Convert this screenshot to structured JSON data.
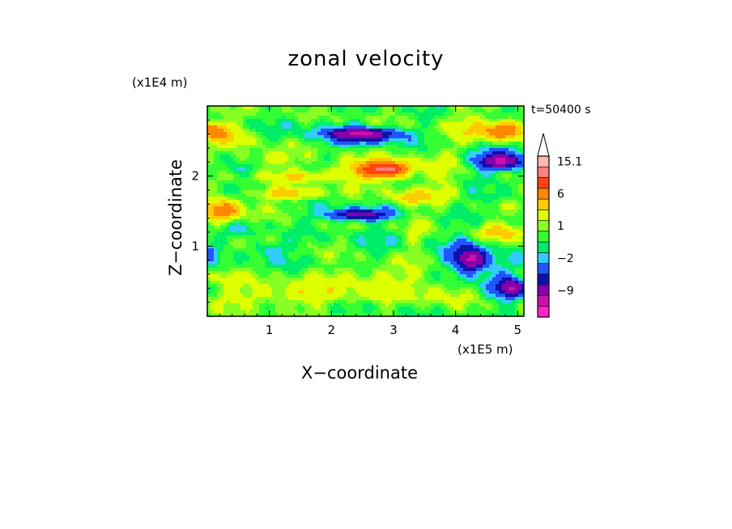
{
  "chart_data": {
    "type": "heatmap",
    "title": "zonal velocity",
    "xlabel": "X−coordinate",
    "ylabel": "Z−coordinate",
    "x_unit_label": "(x1E5 m)",
    "y_unit_label": "(x1E4 m)",
    "annotation": "t=50400 s",
    "xlim": [
      0,
      5.1
    ],
    "ylim": [
      0,
      3.0
    ],
    "x_ticks": [
      1,
      2,
      3,
      4,
      5
    ],
    "x_tick_labels": [
      "1",
      "2",
      "3",
      "4",
      "5"
    ],
    "y_ticks": [
      1,
      2
    ],
    "y_tick_labels": [
      "1",
      "2"
    ],
    "colorbar": {
      "levels": [
        -15,
        -12,
        -9,
        -6,
        -4,
        -2,
        -1,
        0,
        1,
        2,
        4,
        6,
        9,
        12,
        15.1
      ],
      "colors": [
        "#ff22cc",
        "#cc11aa",
        "#8800aa",
        "#1111aa",
        "#2255ff",
        "#33ccff",
        "#00ee66",
        "#33ff33",
        "#88ff22",
        "#ddff00",
        "#ffcc00",
        "#ff8800",
        "#ff4411",
        "#ff8080",
        "#ffb6b6"
      ],
      "labels": [
        "15.1",
        "6",
        "1",
        "−2",
        "−9"
      ],
      "extend": "max",
      "extend_color": "#ffffff"
    },
    "features": [
      {
        "cx": 1.0,
        "cy": 0.95,
        "rx": 0.35,
        "ry": 0.12,
        "v": -2.5
      },
      {
        "cx": 0.55,
        "cy": 1.25,
        "rx": 0.25,
        "ry": 0.12,
        "v": -1.5
      },
      {
        "cx": 0.25,
        "cy": 1.5,
        "rx": 0.3,
        "ry": 0.16,
        "v": 7.5
      },
      {
        "cx": 0.1,
        "cy": 2.65,
        "rx": 0.22,
        "ry": 0.12,
        "v": 7.5
      },
      {
        "cx": 0.45,
        "cy": 2.55,
        "rx": 0.3,
        "ry": 0.14,
        "v": 2.5
      },
      {
        "cx": 0.4,
        "cy": 2.1,
        "rx": 0.3,
        "ry": 0.1,
        "v": -1.5
      },
      {
        "cx": 1.0,
        "cy": 2.25,
        "rx": 0.4,
        "ry": 0.12,
        "v": 2.5
      },
      {
        "cx": 1.35,
        "cy": 1.75,
        "rx": 0.55,
        "ry": 0.08,
        "v": 5.0
      },
      {
        "cx": 1.45,
        "cy": 2.0,
        "rx": 0.55,
        "ry": 0.08,
        "v": 3.0
      },
      {
        "cx": 1.6,
        "cy": 2.7,
        "rx": 0.5,
        "ry": 0.16,
        "v": -1.0
      },
      {
        "cx": 2.2,
        "cy": 1.45,
        "rx": 0.5,
        "ry": 0.1,
        "v": -2.5
      },
      {
        "cx": 2.5,
        "cy": 1.45,
        "rx": 0.45,
        "ry": 0.08,
        "v": -6.5
      },
      {
        "cx": 2.4,
        "cy": 2.55,
        "rx": 0.55,
        "ry": 0.14,
        "v": -3.0
      },
      {
        "cx": 2.55,
        "cy": 2.6,
        "rx": 0.55,
        "ry": 0.09,
        "v": -7.5
      },
      {
        "cx": 2.7,
        "cy": 2.1,
        "rx": 0.65,
        "ry": 0.15,
        "v": 5.5
      },
      {
        "cx": 2.9,
        "cy": 2.1,
        "rx": 0.35,
        "ry": 0.1,
        "v": 8.0
      },
      {
        "cx": 3.3,
        "cy": 1.7,
        "rx": 0.35,
        "ry": 0.1,
        "v": 4.5
      },
      {
        "cx": 2.9,
        "cy": 1.05,
        "rx": 0.7,
        "ry": 0.3,
        "v": -0.5
      },
      {
        "cx": 1.5,
        "cy": 0.75,
        "rx": 0.8,
        "ry": 0.12,
        "v": -0.5
      },
      {
        "cx": 1.3,
        "cy": 0.3,
        "rx": 1.5,
        "ry": 0.15,
        "v": 2.5
      },
      {
        "cx": 2.6,
        "cy": 0.55,
        "rx": 1.2,
        "ry": 0.18,
        "v": 2.0
      },
      {
        "cx": 0.3,
        "cy": 0.55,
        "rx": 0.35,
        "ry": 0.1,
        "v": 1.5
      },
      {
        "cx": 0.05,
        "cy": 0.9,
        "rx": 0.12,
        "ry": 0.15,
        "v": -2.5
      },
      {
        "cx": 3.35,
        "cy": 1.2,
        "rx": 0.15,
        "ry": 0.4,
        "v": 1.5
      },
      {
        "cx": 4.15,
        "cy": 2.7,
        "rx": 0.3,
        "ry": 0.25,
        "v": 2.0
      },
      {
        "cx": 4.75,
        "cy": 2.65,
        "rx": 0.35,
        "ry": 0.14,
        "v": 8.0
      },
      {
        "cx": 4.7,
        "cy": 2.25,
        "rx": 0.45,
        "ry": 0.18,
        "v": -3.0
      },
      {
        "cx": 4.75,
        "cy": 2.2,
        "rx": 0.4,
        "ry": 0.1,
        "v": -7.0
      },
      {
        "cx": 4.6,
        "cy": 1.7,
        "rx": 0.4,
        "ry": 0.08,
        "v": -1.5
      },
      {
        "cx": 4.7,
        "cy": 1.2,
        "rx": 0.4,
        "ry": 0.12,
        "v": 4.0
      },
      {
        "cx": 4.2,
        "cy": 0.85,
        "rx": 0.4,
        "ry": 0.3,
        "v": -3.5
      },
      {
        "cx": 4.25,
        "cy": 0.8,
        "rx": 0.22,
        "ry": 0.15,
        "v": -7.5
      },
      {
        "cx": 4.9,
        "cy": 0.4,
        "rx": 0.2,
        "ry": 0.12,
        "v": -7.5
      },
      {
        "cx": 4.7,
        "cy": 0.5,
        "rx": 0.35,
        "ry": 0.3,
        "v": -2.5
      },
      {
        "cx": 3.7,
        "cy": 0.3,
        "rx": 0.5,
        "ry": 0.18,
        "v": 1.5
      },
      {
        "cx": 3.8,
        "cy": 2.0,
        "rx": 0.25,
        "ry": 0.35,
        "v": 1.5
      }
    ]
  }
}
